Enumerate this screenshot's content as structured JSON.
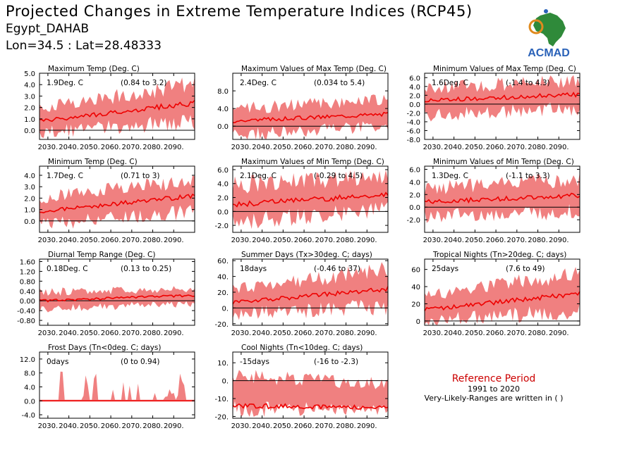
{
  "header": {
    "title": "Projected Changes in Extreme Temperature Indices (RCP45)",
    "station": "Egypt_DAHAB",
    "coords": "Lon=34.5 : Lat=28.48333"
  },
  "logo": {
    "text": "ACMAD",
    "icon": "africa-map-icon",
    "colors": {
      "blue": "#2a62b8",
      "green": "#2f8a3a",
      "orange": "#e08a1e"
    }
  },
  "reference": {
    "title": "Reference Period",
    "years": "1991 to 2020",
    "note": "Very-Likely-Ranges are written in ( )"
  },
  "colors": {
    "band": "#f08080",
    "line": "#ee0000",
    "zero": "#000000"
  },
  "chart_data": [
    {
      "type": "line",
      "title": "Maximum Temp (Deg. C)",
      "change": "1.9Deg. C",
      "range": "(0.84 to 3.2)",
      "x_ticks": [
        "2030.",
        "2040.",
        "2050.",
        "2060.",
        "2070.",
        "2080.",
        "2090."
      ],
      "ylim": [
        -0.8,
        5.0
      ],
      "y_ticks": [
        "5.0",
        "4.0",
        "3.0",
        "2.0",
        "1.0",
        "0.0"
      ],
      "y_tick_values": [
        5,
        4,
        3,
        2,
        1,
        0
      ],
      "x": [
        2026,
        2100
      ],
      "series": [
        {
          "values": {
            "start": 0.8,
            "end": 2.4
          },
          "band": {
            "start_lo": -0.2,
            "start_hi": 2.0,
            "end_lo": 0.8,
            "end_hi": 4.0
          }
        }
      ]
    },
    {
      "type": "line",
      "title": "Maximum Values of Max Temp (Deg. C)",
      "change": "2.4Deg. C",
      "range": "(0.034 to 5.4)",
      "x_ticks": [
        "2030.",
        "2040.",
        "2050.",
        "2060.",
        "2070.",
        "2080.",
        "2090."
      ],
      "ylim": [
        -3.0,
        12.0
      ],
      "y_ticks": [
        "8.0",
        "4.0",
        "0.0"
      ],
      "y_tick_values": [
        8,
        4,
        0
      ],
      "x": [
        2026,
        2100
      ],
      "series": [
        {
          "values": {
            "start": 1.2,
            "end": 2.8
          },
          "band": {
            "start_lo": -2.0,
            "start_hi": 4.0,
            "end_lo": 0.0,
            "end_hi": 6.0
          }
        }
      ]
    },
    {
      "type": "line",
      "title": "Minimum Values of Max Temp (Deg. C)",
      "change": "1.6Deg. C",
      "range": "(-1.4 to 4.3)",
      "x_ticks": [
        "2030.",
        "2040.",
        "2050.",
        "2060.",
        "2070.",
        "2080.",
        "2090."
      ],
      "ylim": [
        -8.0,
        7.0
      ],
      "y_ticks": [
        "6.0",
        "4.0",
        "2.0",
        "0.0",
        "-2.0",
        "-4.0",
        "-6.0",
        "-8.0"
      ],
      "y_tick_values": [
        6,
        4,
        2,
        0,
        -2,
        -4,
        -6,
        -8
      ],
      "x": [
        2026,
        2100
      ],
      "series": [
        {
          "values": {
            "start": 0.8,
            "end": 2.2
          },
          "band": {
            "start_lo": -2.5,
            "start_hi": 3.5,
            "end_lo": -1.0,
            "end_hi": 5.5
          }
        }
      ]
    },
    {
      "type": "line",
      "title": "Minimum Temp (Deg. C)",
      "change": "1.7Deg. C",
      "range": "(0.71 to 3)",
      "x_ticks": [
        "2030.",
        "2040.",
        "2050.",
        "2060.",
        "2070.",
        "2080.",
        "2090."
      ],
      "ylim": [
        -1.0,
        4.8
      ],
      "y_ticks": [
        "4.0",
        "3.0",
        "2.0",
        "1.0",
        "0.0"
      ],
      "y_tick_values": [
        4,
        3,
        2,
        1,
        0
      ],
      "x": [
        2026,
        2100
      ],
      "series": [
        {
          "values": {
            "start": 0.8,
            "end": 2.2
          },
          "band": {
            "start_lo": -0.3,
            "start_hi": 2.0,
            "end_lo": 0.8,
            "end_hi": 3.6
          }
        }
      ]
    },
    {
      "type": "line",
      "title": "Maximum Values of Min Temp (Deg. C)",
      "change": "2.1Deg. C",
      "range": "(-0.29 to 4.5)",
      "x_ticks": [
        "2030.",
        "2040.",
        "2050.",
        "2060.",
        "2070.",
        "2080.",
        "2090."
      ],
      "ylim": [
        -3.0,
        6.5
      ],
      "y_ticks": [
        "6.0",
        "4.0",
        "2.0",
        "0.0",
        "-2.0"
      ],
      "y_tick_values": [
        6,
        4,
        2,
        0,
        -2
      ],
      "x": [
        2026,
        2100
      ],
      "series": [
        {
          "values": {
            "start": 1.0,
            "end": 2.4
          },
          "band": {
            "start_lo": -1.5,
            "start_hi": 3.8,
            "end_lo": 0.3,
            "end_hi": 5.0
          }
        }
      ]
    },
    {
      "type": "line",
      "title": "Minimum Values of Min Temp (Deg. C)",
      "change": "1.3Deg. C",
      "range": "(-1.1 to 3.3)",
      "x_ticks": [
        "2030.",
        "2040.",
        "2050.",
        "2060.",
        "2070.",
        "2080.",
        "2090."
      ],
      "ylim": [
        -4.0,
        6.5
      ],
      "y_ticks": [
        "6.0",
        "4.0",
        "2.0",
        "0.0",
        "-2.0"
      ],
      "y_tick_values": [
        6,
        4,
        2,
        0,
        -2
      ],
      "x": [
        2026,
        2100
      ],
      "series": [
        {
          "values": {
            "start": 0.8,
            "end": 1.9
          },
          "band": {
            "start_lo": -1.5,
            "start_hi": 3.0,
            "end_lo": -0.7,
            "end_hi": 4.5
          }
        }
      ]
    },
    {
      "type": "line",
      "title": "Diurnal Temp Range (Deg. C)",
      "change": "0.18Deg. C",
      "range": "(0.13 to 0.25)",
      "x_ticks": [
        "2030.",
        "2040.",
        "2050.",
        "2060.",
        "2070.",
        "2080.",
        "2090."
      ],
      "ylim": [
        -1.0,
        1.7
      ],
      "y_ticks": [
        "1.60",
        "1.20",
        "0.80",
        "0.40",
        "0.00",
        "-0.40",
        "-0.80"
      ],
      "y_tick_values": [
        1.6,
        1.2,
        0.8,
        0.4,
        0.0,
        -0.4,
        -0.8
      ],
      "x": [
        2026,
        2100
      ],
      "series": [
        {
          "values": {
            "start": 0.0,
            "end": 0.22
          },
          "band": {
            "start_lo": -0.35,
            "start_hi": 0.35,
            "end_lo": -0.1,
            "end_hi": 0.5
          }
        }
      ]
    },
    {
      "type": "line",
      "title": "Summer Days (Tx>30deg. C; days)",
      "change": "18days",
      "range": "(-0.46 to 37)",
      "x_ticks": [
        "2030.",
        "2040.",
        "2050.",
        "2060.",
        "2070.",
        "2080.",
        "2090."
      ],
      "ylim": [
        -22,
        62
      ],
      "y_ticks": [
        "60.",
        "40.",
        "20.",
        "0.",
        "-20."
      ],
      "y_tick_values": [
        60,
        40,
        20,
        0,
        -20
      ],
      "x": [
        2026,
        2100
      ],
      "series": [
        {
          "values": {
            "start": 7,
            "end": 24
          },
          "band": {
            "start_lo": -8,
            "start_hi": 25,
            "end_lo": 2,
            "end_hi": 48
          }
        }
      ]
    },
    {
      "type": "line",
      "title": "Tropical Nights (Tn>20deg. C; days)",
      "change": "25days",
      "range": "(7.6 to 49)",
      "x_ticks": [
        "2030.",
        "2040.",
        "2050.",
        "2060.",
        "2070.",
        "2080.",
        "2090."
      ],
      "ylim": [
        -5,
        72
      ],
      "y_ticks": [
        "60",
        "40",
        "20",
        "0"
      ],
      "y_tick_values": [
        60,
        40,
        20,
        0
      ],
      "x": [
        2026,
        2100
      ],
      "series": [
        {
          "values": {
            "start": 13,
            "end": 32
          },
          "band": {
            "start_lo": 0,
            "start_hi": 30,
            "end_lo": 12,
            "end_hi": 55
          }
        }
      ]
    },
    {
      "type": "line",
      "title": "Frost Days (Tn<0deg. C; days)",
      "change": "0days",
      "range": "(0 to 0.94)",
      "x_ticks": [
        "2030.",
        "2040.",
        "2050.",
        "2060.",
        "2070.",
        "2080.",
        "2090."
      ],
      "ylim": [
        -5.0,
        14.0
      ],
      "y_ticks": [
        "12.0",
        "8.0",
        "4.0",
        "0.0",
        "-4.0"
      ],
      "y_tick_values": [
        12,
        8,
        4,
        0,
        -4
      ],
      "x": [
        2026,
        2100
      ],
      "series": [
        {
          "values": {
            "start": 0,
            "end": 0
          },
          "band": {
            "start_lo": 0,
            "start_hi": 3,
            "end_lo": 0,
            "end_hi": 0.5
          }
        }
      ]
    },
    {
      "type": "line",
      "title": "Cool Nights (Tn<10deg. C; days)",
      "change": "-15days",
      "range": "(-16 to -2.3)",
      "x_ticks": [
        "2030.",
        "2040.",
        "2050.",
        "2060.",
        "2070.",
        "2080.",
        "2090."
      ],
      "ylim": [
        -21,
        16
      ],
      "y_ticks": [
        "10.",
        "0.",
        "-10.",
        "-20."
      ],
      "y_tick_values": [
        10,
        0,
        -10,
        -20
      ],
      "x": [
        2026,
        2100
      ],
      "series": [
        {
          "values": {
            "start": -14,
            "end": -15
          },
          "band": {
            "start_lo": -16,
            "start_hi": 3,
            "end_lo": -16,
            "end_hi": -2
          }
        }
      ]
    }
  ]
}
